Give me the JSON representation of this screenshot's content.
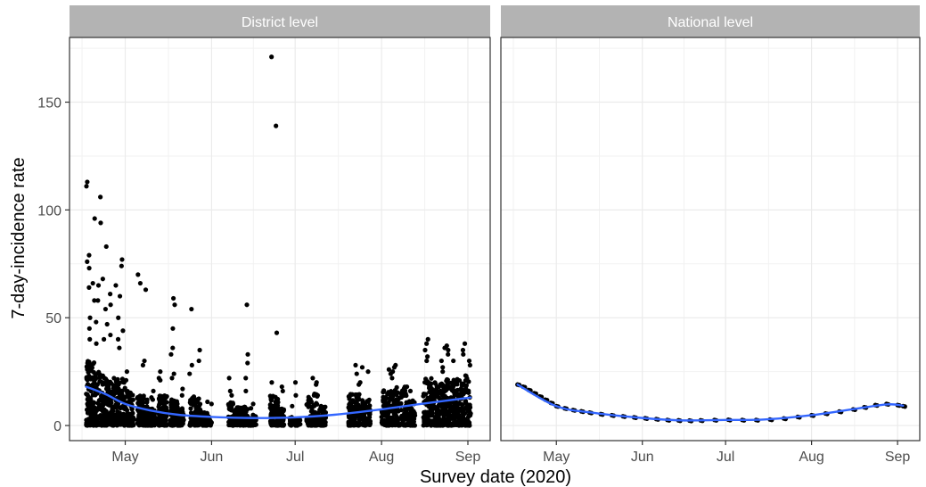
{
  "chart_data": {
    "type": "scatter",
    "xlabel": "Survey date (2020)",
    "ylabel": "7-day-incidence rate",
    "x_ticks": [
      "May",
      "Jun",
      "Jul",
      "Aug",
      "Sep"
    ],
    "x_tick_dates": [
      "2020-05-01",
      "2020-06-01",
      "2020-07-01",
      "2020-08-01",
      "2020-09-01"
    ],
    "y_ticks": [
      0,
      50,
      100,
      150
    ],
    "xlim": [
      "2020-04-11",
      "2020-09-09"
    ],
    "ylim": [
      -7,
      180
    ],
    "grid": true,
    "theme": "bw",
    "colors": {
      "points": "#000000",
      "smooth": "#3366ff",
      "strip": "#b3b3b3",
      "grid": "#ebebeb",
      "border": "#333333"
    },
    "panels": [
      {
        "title": "District level",
        "survey_windows": [
          {
            "start": "2020-04-17",
            "end": "2020-04-20",
            "typical_max": 30,
            "outliers": [
              113,
              111,
              79,
              76,
              73,
              66,
              64,
              58,
              50,
              45,
              40
            ]
          },
          {
            "start": "2020-04-20",
            "end": "2020-04-24",
            "typical_max": 25,
            "outliers": [
              106,
              96,
              94,
              68,
              65,
              58,
              54,
              48,
              40,
              38
            ]
          },
          {
            "start": "2020-04-24",
            "end": "2020-04-27",
            "typical_max": 22,
            "outliers": [
              83,
              61,
              56,
              47,
              42
            ]
          },
          {
            "start": "2020-04-27",
            "end": "2020-05-01",
            "typical_max": 22,
            "outliers": [
              77,
              74,
              65,
              60,
              50,
              44,
              40,
              36
            ]
          },
          {
            "start": "2020-05-01",
            "end": "2020-05-04",
            "typical_max": 16,
            "outliers": [
              25,
              21
            ]
          },
          {
            "start": "2020-05-05",
            "end": "2020-05-09",
            "typical_max": 14,
            "outliers": [
              70,
              66,
              63,
              30,
              28
            ]
          },
          {
            "start": "2020-05-09",
            "end": "2020-05-12",
            "typical_max": 8,
            "outliers": [
              16,
              13,
              12
            ]
          },
          {
            "start": "2020-05-13",
            "end": "2020-05-16",
            "typical_max": 14,
            "outliers": [
              25,
              22,
              21
            ]
          },
          {
            "start": "2020-05-17",
            "end": "2020-05-20",
            "typical_max": 12,
            "outliers": [
              59,
              56,
              45,
              36,
              33,
              24,
              22
            ]
          },
          {
            "start": "2020-05-20",
            "end": "2020-05-22",
            "typical_max": 8,
            "outliers": [
              17,
              14
            ]
          },
          {
            "start": "2020-05-24",
            "end": "2020-05-28",
            "typical_max": 14,
            "outliers": [
              54,
              35,
              30,
              28,
              24
            ]
          },
          {
            "start": "2020-05-28",
            "end": "2020-06-01",
            "typical_max": 6,
            "outliers": [
              11,
              10
            ]
          },
          {
            "start": "2020-06-07",
            "end": "2020-06-11",
            "typical_max": 11,
            "outliers": [
              22,
              16,
              14
            ]
          },
          {
            "start": "2020-06-11",
            "end": "2020-06-14",
            "typical_max": 9,
            "outliers": [
              56,
              33,
              29,
              22,
              16
            ]
          },
          {
            "start": "2020-06-14",
            "end": "2020-06-17",
            "typical_max": 5,
            "outliers": [
              10,
              8
            ]
          },
          {
            "start": "2020-06-22",
            "end": "2020-06-25",
            "typical_max": 14,
            "outliers": [
              171,
              139,
              43,
              20
            ]
          },
          {
            "start": "2020-06-25",
            "end": "2020-06-27",
            "typical_max": 8,
            "outliers": [
              18,
              16
            ]
          },
          {
            "start": "2020-06-29",
            "end": "2020-07-03",
            "typical_max": 4,
            "outliers": [
              20,
              14,
              9
            ]
          },
          {
            "start": "2020-07-05",
            "end": "2020-07-09",
            "typical_max": 15,
            "outliers": [
              22,
              20,
              19
            ]
          },
          {
            "start": "2020-07-09",
            "end": "2020-07-12",
            "typical_max": 9,
            "outliers": [
              14
            ]
          },
          {
            "start": "2020-07-20",
            "end": "2020-07-24",
            "typical_max": 15,
            "outliers": [
              28,
              24,
              19
            ]
          },
          {
            "start": "2020-07-24",
            "end": "2020-07-28",
            "typical_max": 12,
            "outliers": [
              27,
              25,
              20
            ]
          },
          {
            "start": "2020-08-01",
            "end": "2020-08-05",
            "typical_max": 17,
            "outliers": [
              26,
              24,
              22
            ]
          },
          {
            "start": "2020-08-05",
            "end": "2020-08-10",
            "typical_max": 18,
            "outliers": [
              28,
              27,
              25
            ]
          },
          {
            "start": "2020-08-10",
            "end": "2020-08-13",
            "typical_max": 12,
            "outliers": [
              18,
              16
            ]
          },
          {
            "start": "2020-08-16",
            "end": "2020-08-20",
            "typical_max": 22,
            "outliers": [
              40,
              38,
              35,
              32,
              30
            ]
          },
          {
            "start": "2020-08-20",
            "end": "2020-08-24",
            "typical_max": 20,
            "outliers": [
              36,
              30,
              27,
              25
            ]
          },
          {
            "start": "2020-08-24",
            "end": "2020-08-28",
            "typical_max": 22,
            "outliers": [
              37,
              35,
              33,
              30
            ]
          },
          {
            "start": "2020-08-28",
            "end": "2020-09-02",
            "typical_max": 24,
            "outliers": [
              38,
              35,
              33,
              30,
              28
            ]
          }
        ],
        "smooth": [
          {
            "x": "2020-04-17",
            "y": 18
          },
          {
            "x": "2020-04-24",
            "y": 14.5
          },
          {
            "x": "2020-05-01",
            "y": 10
          },
          {
            "x": "2020-05-10",
            "y": 7
          },
          {
            "x": "2020-05-20",
            "y": 5
          },
          {
            "x": "2020-06-01",
            "y": 4
          },
          {
            "x": "2020-06-15",
            "y": 3.5
          },
          {
            "x": "2020-07-01",
            "y": 3.8
          },
          {
            "x": "2020-07-15",
            "y": 5
          },
          {
            "x": "2020-08-01",
            "y": 7.5
          },
          {
            "x": "2020-08-15",
            "y": 10
          },
          {
            "x": "2020-09-02",
            "y": 13
          }
        ]
      },
      {
        "title": "National level",
        "points": [
          {
            "x": "2020-04-17",
            "y": 19
          },
          {
            "x": "2020-04-19",
            "y": 18
          },
          {
            "x": "2020-04-21",
            "y": 16.5
          },
          {
            "x": "2020-04-23",
            "y": 15
          },
          {
            "x": "2020-04-25",
            "y": 13.5
          },
          {
            "x": "2020-04-27",
            "y": 12
          },
          {
            "x": "2020-04-29",
            "y": 10.5
          },
          {
            "x": "2020-05-01",
            "y": 9
          },
          {
            "x": "2020-05-04",
            "y": 8
          },
          {
            "x": "2020-05-07",
            "y": 7.2
          },
          {
            "x": "2020-05-10",
            "y": 6.6
          },
          {
            "x": "2020-05-13",
            "y": 6
          },
          {
            "x": "2020-05-17",
            "y": 5.3
          },
          {
            "x": "2020-05-21",
            "y": 4.8
          },
          {
            "x": "2020-05-25",
            "y": 4.3
          },
          {
            "x": "2020-05-29",
            "y": 3.8
          },
          {
            "x": "2020-06-02",
            "y": 3.4
          },
          {
            "x": "2020-06-06",
            "y": 3
          },
          {
            "x": "2020-06-10",
            "y": 2.6
          },
          {
            "x": "2020-06-14",
            "y": 2.4
          },
          {
            "x": "2020-06-18",
            "y": 2.3
          },
          {
            "x": "2020-06-22",
            "y": 2.4
          },
          {
            "x": "2020-06-27",
            "y": 2.6
          },
          {
            "x": "2020-07-02",
            "y": 2.7
          },
          {
            "x": "2020-07-07",
            "y": 2.6
          },
          {
            "x": "2020-07-12",
            "y": 2.6
          },
          {
            "x": "2020-07-17",
            "y": 2.8
          },
          {
            "x": "2020-07-22",
            "y": 3.3
          },
          {
            "x": "2020-07-27",
            "y": 4
          },
          {
            "x": "2020-08-01",
            "y": 4.8
          },
          {
            "x": "2020-08-06",
            "y": 5.6
          },
          {
            "x": "2020-08-11",
            "y": 6.5
          },
          {
            "x": "2020-08-16",
            "y": 7.5
          },
          {
            "x": "2020-08-20",
            "y": 8.5
          },
          {
            "x": "2020-08-24",
            "y": 9.5
          },
          {
            "x": "2020-08-28",
            "y": 10
          },
          {
            "x": "2020-09-01",
            "y": 9.5
          },
          {
            "x": "2020-09-03",
            "y": 9
          }
        ],
        "smooth": [
          {
            "x": "2020-04-17",
            "y": 19
          },
          {
            "x": "2020-05-01",
            "y": 9
          },
          {
            "x": "2020-05-15",
            "y": 5.8
          },
          {
            "x": "2020-06-01",
            "y": 3.5
          },
          {
            "x": "2020-06-15",
            "y": 2.4
          },
          {
            "x": "2020-07-01",
            "y": 2.6
          },
          {
            "x": "2020-07-15",
            "y": 2.8
          },
          {
            "x": "2020-08-01",
            "y": 4.8
          },
          {
            "x": "2020-08-15",
            "y": 7.4
          },
          {
            "x": "2020-08-28",
            "y": 9.8
          },
          {
            "x": "2020-09-03",
            "y": 9.2
          }
        ]
      }
    ]
  }
}
